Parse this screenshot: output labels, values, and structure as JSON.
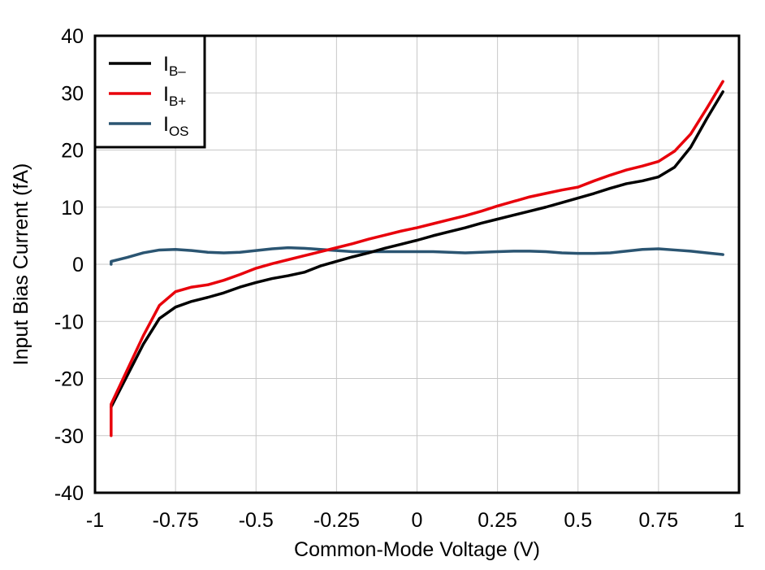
{
  "chart_data": {
    "type": "line",
    "title": "",
    "xlabel": "Common-Mode Voltage (V)",
    "ylabel": "Input Bias Current (fA)",
    "xlim": [
      -1,
      1
    ],
    "ylim": [
      -40,
      40
    ],
    "x_ticks": [
      -1,
      -0.75,
      -0.5,
      -0.25,
      0,
      0.25,
      0.5,
      0.75,
      1
    ],
    "x_tick_labels": [
      "-1",
      "-0.75",
      "-0.5",
      "-0.25",
      "0",
      "0.25",
      "0.5",
      "0.75",
      "1"
    ],
    "y_ticks": [
      -40,
      -30,
      -20,
      -10,
      0,
      10,
      20,
      30,
      40
    ],
    "y_tick_labels": [
      "-40",
      "-30",
      "-20",
      "-10",
      "0",
      "10",
      "20",
      "30",
      "40"
    ],
    "grid": true,
    "legend_position": "top-left",
    "series": [
      {
        "name": "IB–",
        "label_main": "I",
        "label_sub": "B–",
        "color": "#000000",
        "x": [
          -0.95,
          -0.9,
          -0.85,
          -0.8,
          -0.75,
          -0.7,
          -0.65,
          -0.6,
          -0.55,
          -0.5,
          -0.45,
          -0.4,
          -0.35,
          -0.3,
          -0.25,
          -0.2,
          -0.15,
          -0.1,
          -0.05,
          0,
          0.05,
          0.1,
          0.15,
          0.2,
          0.25,
          0.3,
          0.35,
          0.4,
          0.45,
          0.5,
          0.55,
          0.6,
          0.65,
          0.7,
          0.75,
          0.8,
          0.85,
          0.9,
          0.95
        ],
        "y": [
          -25,
          -19.5,
          -14,
          -9.5,
          -7.5,
          -6.5,
          -5.8,
          -5,
          -4,
          -3.2,
          -2.5,
          -2,
          -1.4,
          -0.3,
          0.5,
          1.3,
          2,
          2.8,
          3.5,
          4.2,
          5,
          5.7,
          6.4,
          7.2,
          7.9,
          8.6,
          9.3,
          10,
          10.8,
          11.6,
          12.4,
          13.3,
          14.1,
          14.6,
          15.3,
          17,
          20.5,
          25.5,
          30.2
        ]
      },
      {
        "name": "IB+",
        "label_main": "I",
        "label_sub": "B+",
        "color": "#e8000b",
        "x": [
          -0.95,
          -0.95,
          -0.9,
          -0.85,
          -0.8,
          -0.75,
          -0.7,
          -0.65,
          -0.6,
          -0.55,
          -0.5,
          -0.45,
          -0.4,
          -0.35,
          -0.3,
          -0.25,
          -0.2,
          -0.15,
          -0.1,
          -0.05,
          0,
          0.05,
          0.1,
          0.15,
          0.2,
          0.25,
          0.3,
          0.35,
          0.4,
          0.45,
          0.5,
          0.55,
          0.6,
          0.65,
          0.7,
          0.75,
          0.8,
          0.85,
          0.9,
          0.95
        ],
        "y": [
          -30,
          -24.5,
          -18.5,
          -12.5,
          -7.2,
          -4.8,
          -4,
          -3.6,
          -2.8,
          -1.8,
          -0.7,
          0.1,
          0.8,
          1.5,
          2.2,
          2.9,
          3.6,
          4.4,
          5.1,
          5.8,
          6.4,
          7.1,
          7.8,
          8.5,
          9.3,
          10.2,
          11,
          11.8,
          12.4,
          13,
          13.5,
          14.6,
          15.6,
          16.5,
          17.2,
          18,
          19.8,
          22.8,
          27.3,
          32
        ]
      },
      {
        "name": "IOS",
        "label_main": "I",
        "label_sub": "OS",
        "color": "#2b5572",
        "x": [
          -0.95,
          -0.95,
          -0.9,
          -0.85,
          -0.8,
          -0.75,
          -0.7,
          -0.65,
          -0.6,
          -0.55,
          -0.5,
          -0.45,
          -0.4,
          -0.35,
          -0.3,
          -0.25,
          -0.2,
          -0.15,
          -0.1,
          -0.05,
          0,
          0.05,
          0.1,
          0.15,
          0.2,
          0.25,
          0.3,
          0.35,
          0.4,
          0.45,
          0.5,
          0.55,
          0.6,
          0.65,
          0.7,
          0.75,
          0.8,
          0.85,
          0.9,
          0.95
        ],
        "y": [
          0,
          0.5,
          1.2,
          2,
          2.5,
          2.6,
          2.4,
          2.1,
          2,
          2.1,
          2.4,
          2.7,
          2.9,
          2.8,
          2.6,
          2.4,
          2.2,
          2.2,
          2.2,
          2.2,
          2.2,
          2.2,
          2.1,
          2,
          2.1,
          2.2,
          2.3,
          2.3,
          2.2,
          2,
          1.9,
          1.9,
          2,
          2.3,
          2.6,
          2.7,
          2.5,
          2.3,
          2,
          1.7
        ]
      }
    ]
  }
}
